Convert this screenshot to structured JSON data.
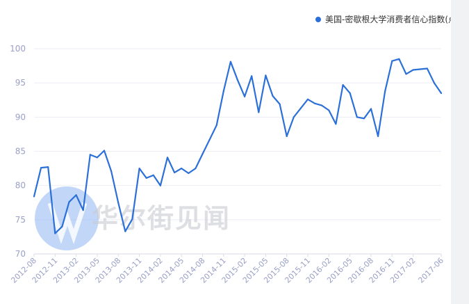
{
  "legend": {
    "label": "美国-密歇根大学消费者信心指数(点)",
    "color": "#2b6fd8"
  },
  "watermark": {
    "text": "华尔街见闻",
    "icon": "wallstreetcn-logo-icon"
  },
  "chart_data": {
    "type": "line",
    "ylim": [
      70,
      100
    ],
    "yticks": [
      70,
      75,
      80,
      85,
      90,
      95,
      100
    ],
    "grid": true,
    "legend_position": "top-right",
    "xtick_labels": [
      "2012-08",
      "2012-11",
      "2013-02",
      "2013-05",
      "2013-08",
      "2013-11",
      "2014-02",
      "2014-05",
      "2014-08",
      "2014-11",
      "2015-02",
      "2015-05",
      "2015-08",
      "2015-11",
      "2016-02",
      "2016-05",
      "2016-08",
      "2016-11",
      "2017-02",
      "2017-06"
    ],
    "series": [
      {
        "name": "美国-密歇根大学消费者信心指数(点)",
        "color": "#2b6fd8",
        "x": [
          "2012-08",
          "2012-09",
          "2012-10",
          "2012-11",
          "2012-12",
          "2013-01",
          "2013-02",
          "2013-03",
          "2013-04",
          "2013-05",
          "2013-06",
          "2013-07",
          "2013-08",
          "2013-09",
          "2013-10",
          "2013-11",
          "2013-12",
          "2014-01",
          "2014-02",
          "2014-03",
          "2014-04",
          "2014-05",
          "2014-06",
          "2014-07",
          "2014-08",
          "2014-09",
          "2014-10",
          "2014-11",
          "2014-12",
          "2015-01",
          "2015-02",
          "2015-03",
          "2015-04",
          "2015-05",
          "2015-06",
          "2015-07",
          "2015-08",
          "2015-09",
          "2015-10",
          "2015-11",
          "2015-12",
          "2016-01",
          "2016-02",
          "2016-03",
          "2016-04",
          "2016-05",
          "2016-06",
          "2016-07",
          "2016-08",
          "2016-09",
          "2016-10",
          "2016-11",
          "2016-12",
          "2017-01",
          "2017-02",
          "2017-03",
          "2017-04",
          "2017-05",
          "2017-06"
        ],
        "values": [
          78.4,
          82.6,
          82.7,
          73.0,
          74.0,
          77.6,
          78.6,
          76.4,
          84.5,
          84.1,
          85.1,
          82.1,
          77.5,
          73.3,
          75.1,
          82.5,
          81.1,
          81.5,
          80.0,
          84.1,
          81.9,
          82.5,
          81.8,
          82.5,
          84.6,
          86.7,
          88.8,
          93.8,
          98.1,
          95.4,
          93.0,
          96.0,
          90.7,
          96.1,
          93.1,
          91.9,
          87.2,
          90.0,
          91.3,
          92.6,
          92.0,
          91.7,
          91.0,
          89.0,
          94.7,
          93.5,
          90.0,
          89.8,
          91.2,
          87.2,
          93.8,
          98.2,
          98.5,
          96.3,
          96.9,
          97.0,
          97.1,
          95.0,
          93.5
        ]
      }
    ]
  }
}
